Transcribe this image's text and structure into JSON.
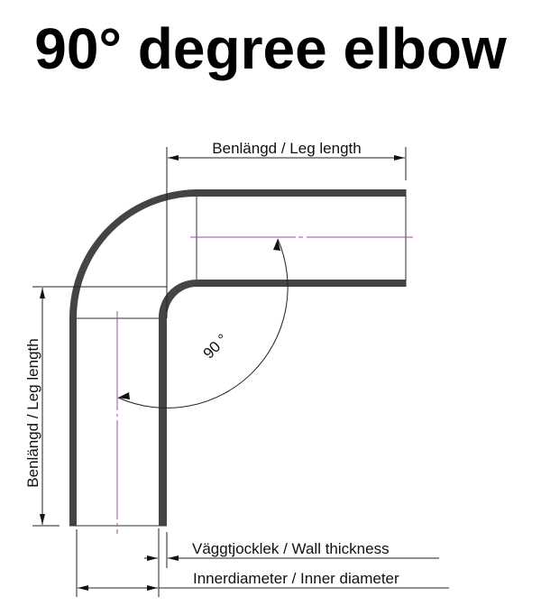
{
  "title": "90° degree elbow",
  "labels": {
    "leg_length_top": "Benlängd / Leg length",
    "leg_length_side": "Benlängd / Leg length",
    "angle": "90 °",
    "wall_thickness": "Väggtjocklek / Wall thickness",
    "inner_diameter": "Innerdiameter / Inner diameter"
  },
  "colors": {
    "pipe_wall": "#444444",
    "dimension_line": "#222222",
    "centerline": "#9b4fa0"
  }
}
